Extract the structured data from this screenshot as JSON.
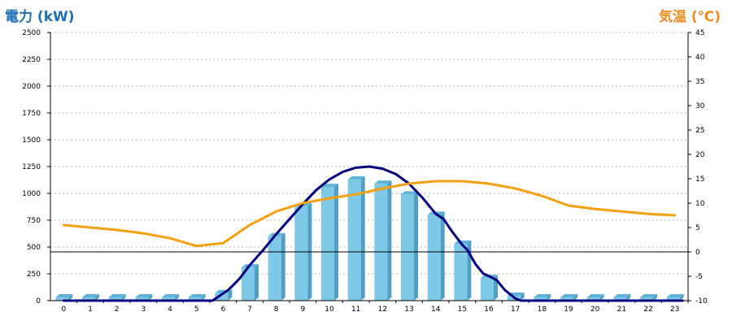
{
  "chart_data": {
    "type": "bar",
    "ylabel_left": "電力 (kW)",
    "ylabel_right": "気温 (℃)",
    "colors": {
      "left_label": "#1f6fb4",
      "right_label": "#f08c1e",
      "bar_front": "#7ec8e8",
      "bar_side": "#4f9ec4",
      "bar_top": "#5fb3da",
      "curve": "#000080",
      "temperature": "#f5a00f",
      "grid": "#b4b4b4"
    },
    "categories": [
      "0",
      "1",
      "2",
      "3",
      "4",
      "5",
      "6",
      "7",
      "8",
      "9",
      "10",
      "11",
      "12",
      "13",
      "14",
      "15",
      "16",
      "17",
      "18",
      "19",
      "20",
      "21",
      "22",
      "23"
    ],
    "left_axis": {
      "ylim": [
        0,
        2500
      ],
      "ticks": [
        "0",
        "250",
        "500",
        "750",
        "1000",
        "1250",
        "1500",
        "1750",
        "2000",
        "2250",
        "2500"
      ]
    },
    "right_axis": {
      "ylim": [
        -10,
        45
      ],
      "ticks": [
        "-10",
        "-5",
        "0",
        "5",
        "10",
        "15",
        "20",
        "25",
        "30",
        "35",
        "40",
        "45"
      ]
    },
    "grid": true,
    "series": [
      {
        "kind": "bar",
        "axis": "left",
        "values": [
          0,
          0,
          0,
          0,
          0,
          0,
          70,
          310,
          600,
          880,
          1060,
          1130,
          1090,
          990,
          800,
          530,
          210,
          45,
          0,
          0,
          0,
          0,
          0,
          0
        ]
      },
      {
        "kind": "line",
        "axis": "left",
        "points": [
          [
            0,
            0
          ],
          [
            5.6,
            0
          ],
          [
            6.2,
            100
          ],
          [
            6.6,
            200
          ],
          [
            7,
            330
          ],
          [
            7.5,
            470
          ],
          [
            8,
            620
          ],
          [
            8.5,
            760
          ],
          [
            9,
            900
          ],
          [
            9.5,
            1030
          ],
          [
            10,
            1130
          ],
          [
            10.5,
            1200
          ],
          [
            11,
            1240
          ],
          [
            11.5,
            1250
          ],
          [
            12,
            1230
          ],
          [
            12.5,
            1180
          ],
          [
            13,
            1090
          ],
          [
            13.5,
            960
          ],
          [
            14,
            810
          ],
          [
            14.3,
            760
          ],
          [
            14.6,
            650
          ],
          [
            15,
            520
          ],
          [
            15.2,
            470
          ],
          [
            15.5,
            340
          ],
          [
            15.8,
            250
          ],
          [
            16,
            230
          ],
          [
            16.3,
            190
          ],
          [
            16.6,
            100
          ],
          [
            17,
            20
          ],
          [
            17.2,
            0
          ],
          [
            23.3,
            0
          ]
        ]
      },
      {
        "kind": "line",
        "axis": "right",
        "values": [
          5.5,
          5,
          4.5,
          3.8,
          2.8,
          1.2,
          1.8,
          5.5,
          8.3,
          10,
          11,
          11.8,
          13,
          14,
          14.5,
          14.5,
          14,
          13,
          11.5,
          9.5,
          8.8,
          8.3,
          7.8,
          7.5
        ]
      }
    ]
  }
}
